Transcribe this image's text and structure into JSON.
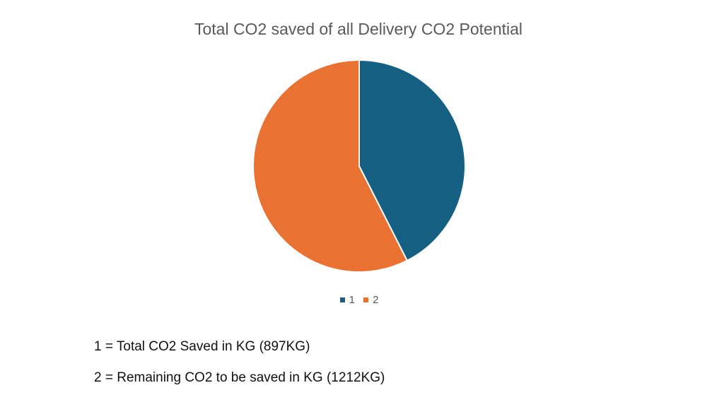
{
  "chart_data": {
    "type": "pie",
    "title": "Total CO2 saved of all Delivery CO2 Potential",
    "categories": [
      "1",
      "2"
    ],
    "values": [
      897,
      1212
    ],
    "colors": [
      "#156082",
      "#E97132"
    ],
    "legend_position": "bottom"
  },
  "notes": [
    "1 = Total CO2 Saved in KG (897KG)",
    "2 = Remaining CO2 to be saved in KG (1212KG)"
  ]
}
